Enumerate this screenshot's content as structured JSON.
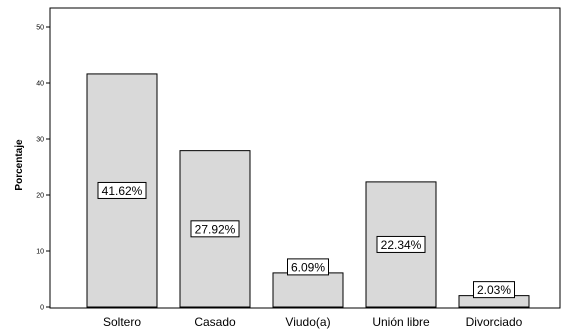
{
  "chart_data": {
    "type": "bar",
    "categories": [
      "Soltero",
      "Casado",
      "Viudo(a)",
      "Unión libre",
      "Divorciado"
    ],
    "values": [
      41.62,
      27.92,
      6.09,
      22.34,
      2.03
    ],
    "data_labels": [
      "41.62%",
      "27.92%",
      "6.09%",
      "22.34%",
      "2.03%"
    ],
    "ylabel": "Porcentaje",
    "xlabel": "",
    "ylim": [
      0,
      50
    ],
    "yticks": [
      "0",
      "10",
      "20",
      "30",
      "40",
      "50"
    ],
    "grid": false,
    "colors": {
      "bar_fill": "#d9d9d9",
      "bar_stroke": "#000000",
      "label_box": "#ffffff"
    }
  }
}
